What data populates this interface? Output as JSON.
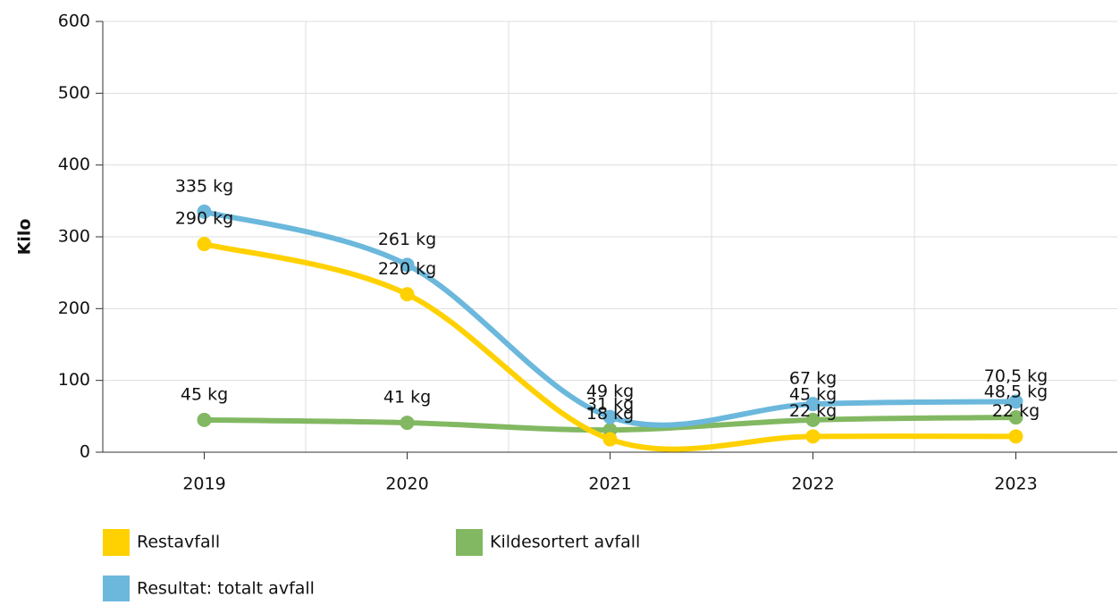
{
  "chart_data": {
    "type": "line",
    "y_label": "Kilo",
    "categories": [
      "2019",
      "2020",
      "2021",
      "2022",
      "2023"
    ],
    "series": [
      {
        "name": "Kildesortert avfall",
        "color": "#82b862",
        "values": [
          45,
          41,
          31,
          45,
          48.5
        ],
        "value_labels": [
          "45 kg",
          "41 kg",
          "31 kg",
          "45 kg",
          "48,5 kg"
        ]
      },
      {
        "name": "Restavfall",
        "color": "#ffd100",
        "values": [
          290,
          220,
          18,
          22,
          22
        ],
        "value_labels": [
          "290 kg",
          "220 kg",
          "18 kg",
          "22 kg",
          "22 kg"
        ]
      },
      {
        "name": "Resultat: totalt avfall",
        "color": "#6bb8dc",
        "values": [
          335,
          261,
          49,
          67,
          70.5
        ],
        "value_labels": [
          "335 kg",
          "261 kg",
          "49 kg",
          "67 kg",
          "70,5 kg"
        ]
      }
    ],
    "ylim": [
      0,
      600
    ],
    "yticks": [
      0,
      100,
      200,
      300,
      400,
      500,
      600
    ],
    "grid": true
  }
}
